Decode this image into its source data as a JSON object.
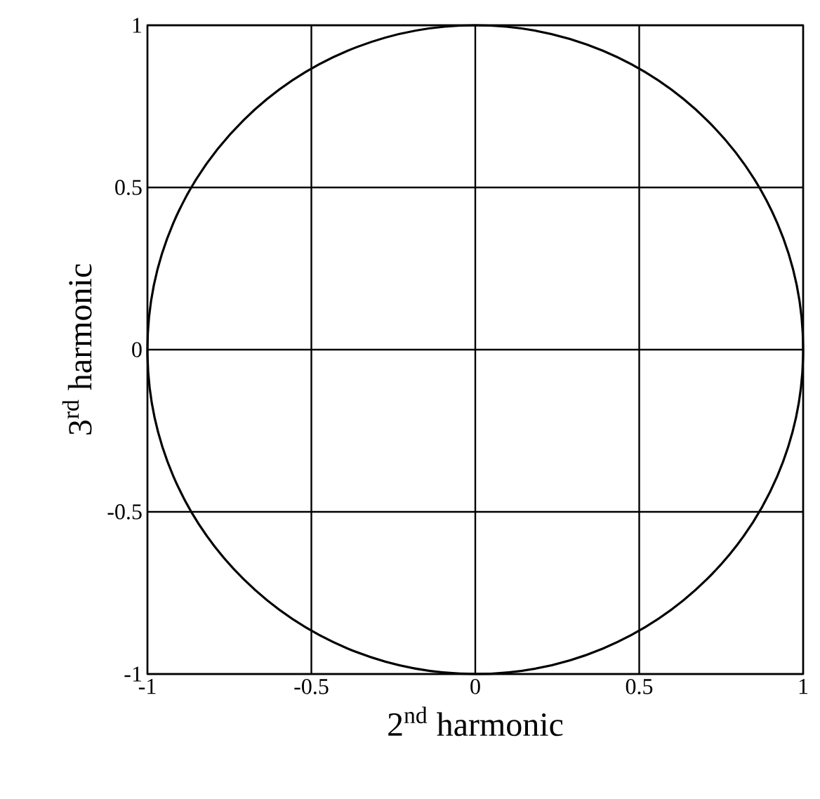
{
  "chart_data": {
    "type": "line",
    "xlabel": "2$^{nd}$ harmonic",
    "ylabel": "3$^{rd}$ harmonic",
    "xlim": [
      -1,
      1
    ],
    "ylim": [
      -1,
      1
    ],
    "xticks": [
      -1,
      -0.5,
      0,
      0.5,
      1
    ],
    "yticks": [
      -1,
      -0.5,
      0,
      0.5,
      1
    ],
    "grid": true
  }
}
